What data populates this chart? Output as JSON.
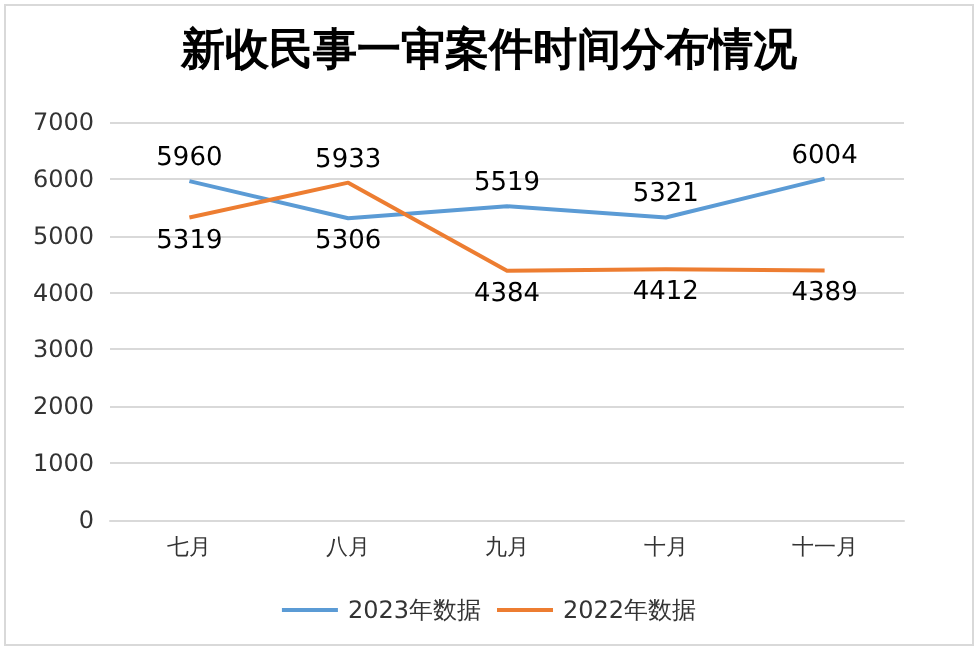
{
  "chart_data": {
    "type": "line",
    "title": "新收民事一审案件时间分布情况",
    "categories": [
      "七月",
      "八月",
      "九月",
      "十月",
      "十一月"
    ],
    "series": [
      {
        "name": "2023年数据",
        "color": "#5b9bd5",
        "values": [
          5960,
          5306,
          5519,
          5321,
          6004
        ]
      },
      {
        "name": "2022年数据",
        "color": "#ed7d31",
        "values": [
          5319,
          5933,
          4384,
          4412,
          4389
        ]
      }
    ],
    "ylim": [
      0,
      7000
    ],
    "yticks": [
      0,
      1000,
      2000,
      3000,
      4000,
      5000,
      6000,
      7000
    ],
    "grid": "y",
    "legend": "bottom",
    "data_labels": true,
    "marker": "none"
  }
}
